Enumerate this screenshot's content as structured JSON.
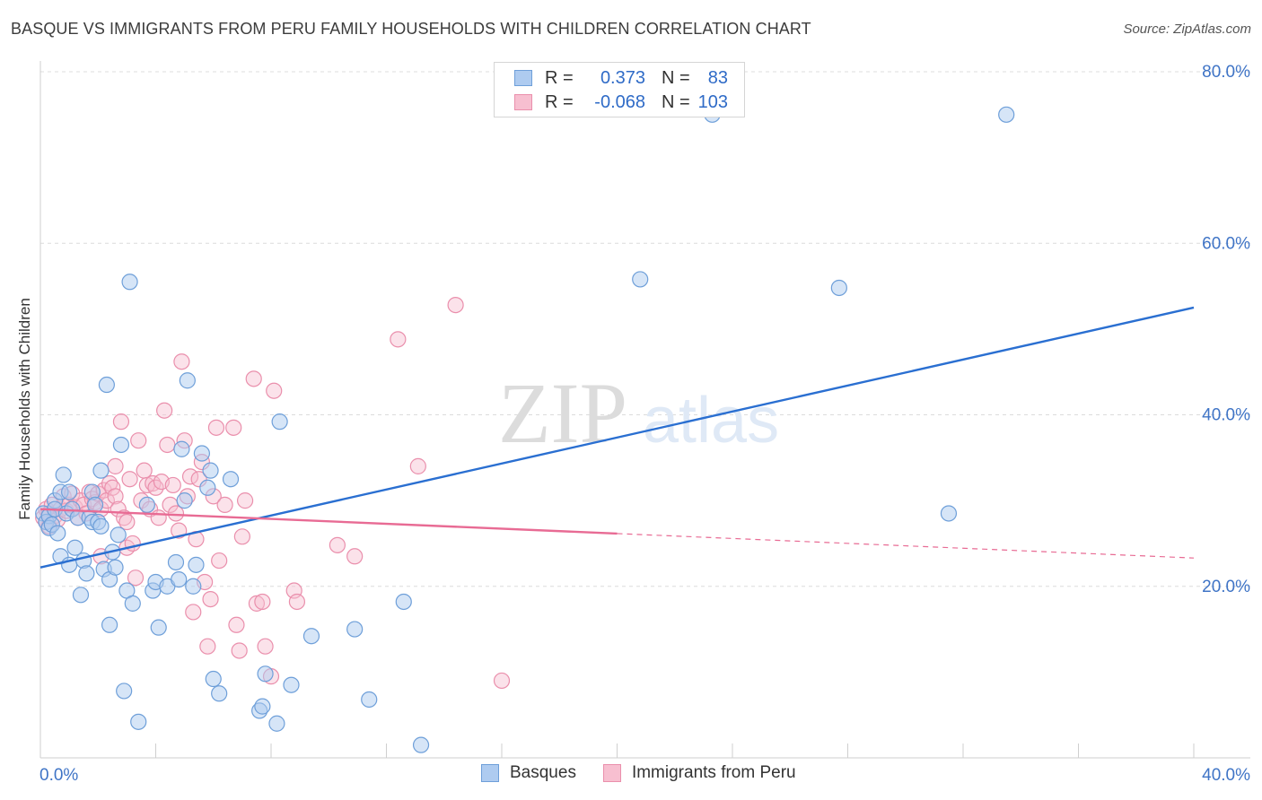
{
  "header": {
    "title": "BASQUE VS IMMIGRANTS FROM PERU FAMILY HOUSEHOLDS WITH CHILDREN CORRELATION CHART",
    "source": "Source: ZipAtlas.com"
  },
  "legend": {
    "r_label": "R =",
    "n_label": "N =",
    "rows": [
      {
        "r": "0.373",
        "n": "83"
      },
      {
        "r": "-0.068",
        "n": "103"
      }
    ]
  },
  "watermark": {
    "zip": "ZIP",
    "atlas": "atlas"
  },
  "colors": {
    "basque_fill": "#aecbf0",
    "basque_stroke": "#6e9fd9",
    "basque_line": "#2a6fd1",
    "peru_fill": "#f7bfd0",
    "peru_stroke": "#ea8fac",
    "peru_line": "#e86b94",
    "axis_tick_color": "#3f74c6"
  },
  "chart_data": {
    "type": "scatter",
    "title": "BASQUE VS IMMIGRANTS FROM PERU FAMILY HOUSEHOLDS WITH CHILDREN CORRELATION CHART",
    "xlabel": "",
    "ylabel": "Family Households with Children",
    "xlim": [
      0,
      40
    ],
    "ylim": [
      0,
      80
    ],
    "x_tick_labels": [
      "0.0%",
      "40.0%"
    ],
    "y_ticks": [
      20,
      40,
      60,
      80
    ],
    "y_tick_labels": [
      "20.0%",
      "40.0%",
      "60.0%",
      "80.0%"
    ],
    "grid": true,
    "series": [
      {
        "name": "Basques",
        "r": 0.373,
        "n": 83,
        "trend": {
          "x": [
            0,
            40
          ],
          "y": [
            22.2,
            52.5
          ],
          "dashed_from": null
        },
        "points": [
          [
            0.1,
            28.5
          ],
          [
            0.2,
            27.5
          ],
          [
            0.3,
            28.2
          ],
          [
            0.3,
            26.8
          ],
          [
            0.4,
            27.2
          ],
          [
            0.5,
            30.0
          ],
          [
            0.5,
            29.0
          ],
          [
            0.6,
            26.2
          ],
          [
            0.7,
            23.5
          ],
          [
            0.7,
            31.0
          ],
          [
            0.8,
            33.0
          ],
          [
            0.9,
            28.5
          ],
          [
            1.0,
            31.0
          ],
          [
            1.0,
            22.5
          ],
          [
            1.1,
            29.0
          ],
          [
            1.2,
            24.5
          ],
          [
            1.3,
            28.0
          ],
          [
            1.4,
            19.0
          ],
          [
            1.5,
            23.0
          ],
          [
            1.6,
            21.5
          ],
          [
            1.7,
            28.0
          ],
          [
            1.8,
            27.5
          ],
          [
            1.8,
            31.0
          ],
          [
            1.9,
            29.5
          ],
          [
            2.0,
            27.5
          ],
          [
            2.1,
            27.0
          ],
          [
            2.1,
            33.5
          ],
          [
            2.2,
            22.0
          ],
          [
            2.3,
            43.5
          ],
          [
            2.4,
            20.8
          ],
          [
            2.4,
            15.5
          ],
          [
            2.5,
            24.0
          ],
          [
            2.6,
            22.2
          ],
          [
            2.7,
            26.0
          ],
          [
            2.8,
            36.5
          ],
          [
            2.9,
            7.8
          ],
          [
            3.0,
            19.5
          ],
          [
            3.1,
            55.5
          ],
          [
            3.2,
            18.0
          ],
          [
            3.4,
            4.2
          ],
          [
            3.7,
            29.5
          ],
          [
            3.9,
            19.5
          ],
          [
            4.0,
            20.5
          ],
          [
            4.1,
            15.2
          ],
          [
            4.4,
            20.0
          ],
          [
            4.7,
            22.8
          ],
          [
            4.8,
            20.8
          ],
          [
            4.9,
            36.0
          ],
          [
            5.0,
            30.0
          ],
          [
            5.1,
            44.0
          ],
          [
            5.3,
            20.0
          ],
          [
            5.4,
            22.5
          ],
          [
            5.6,
            35.5
          ],
          [
            5.8,
            31.5
          ],
          [
            5.9,
            33.5
          ],
          [
            6.0,
            9.2
          ],
          [
            6.2,
            7.5
          ],
          [
            6.6,
            32.5
          ],
          [
            7.6,
            5.5
          ],
          [
            7.7,
            6.0
          ],
          [
            7.8,
            9.8
          ],
          [
            8.2,
            4.0
          ],
          [
            8.3,
            39.2
          ],
          [
            8.7,
            8.5
          ],
          [
            9.4,
            14.2
          ],
          [
            10.9,
            15.0
          ],
          [
            11.4,
            6.8
          ],
          [
            12.6,
            18.2
          ],
          [
            13.2,
            1.5
          ],
          [
            20.8,
            55.8
          ],
          [
            23.3,
            75.0
          ],
          [
            27.7,
            54.8
          ],
          [
            31.5,
            28.5
          ],
          [
            33.5,
            75.0
          ]
        ]
      },
      {
        "name": "Immigrants from Peru",
        "r": -0.068,
        "n": 103,
        "trend": {
          "x": [
            0,
            40
          ],
          "y": [
            29.0,
            23.3
          ],
          "dashed_from": 20.0
        },
        "points": [
          [
            0.1,
            28.0
          ],
          [
            0.2,
            27.5
          ],
          [
            0.2,
            29.0
          ],
          [
            0.3,
            28.5
          ],
          [
            0.3,
            27.0
          ],
          [
            0.4,
            29.5
          ],
          [
            0.5,
            28.2
          ],
          [
            0.6,
            27.8
          ],
          [
            0.7,
            29.0
          ],
          [
            0.8,
            30.5
          ],
          [
            0.9,
            28.8
          ],
          [
            1.0,
            29.5
          ],
          [
            1.1,
            30.8
          ],
          [
            1.2,
            29.2
          ],
          [
            1.3,
            28.0
          ],
          [
            1.4,
            30.0
          ],
          [
            1.5,
            29.5
          ],
          [
            1.6,
            28.5
          ],
          [
            1.7,
            31.0
          ],
          [
            1.8,
            30.2
          ],
          [
            1.9,
            29.8
          ],
          [
            2.0,
            30.8
          ],
          [
            2.1,
            29.0
          ],
          [
            2.1,
            23.5
          ],
          [
            2.2,
            31.2
          ],
          [
            2.3,
            30.0
          ],
          [
            2.4,
            32.0
          ],
          [
            2.5,
            31.5
          ],
          [
            2.6,
            30.5
          ],
          [
            2.6,
            34.0
          ],
          [
            2.7,
            29.0
          ],
          [
            2.8,
            39.2
          ],
          [
            2.9,
            28.0
          ],
          [
            3.0,
            27.5
          ],
          [
            3.0,
            24.5
          ],
          [
            3.1,
            32.5
          ],
          [
            3.2,
            25.0
          ],
          [
            3.3,
            21.0
          ],
          [
            3.4,
            37.0
          ],
          [
            3.5,
            30.0
          ],
          [
            3.6,
            33.5
          ],
          [
            3.7,
            31.8
          ],
          [
            3.8,
            29.0
          ],
          [
            3.9,
            32.0
          ],
          [
            4.0,
            31.5
          ],
          [
            4.1,
            28.0
          ],
          [
            4.2,
            32.2
          ],
          [
            4.3,
            40.5
          ],
          [
            4.4,
            36.5
          ],
          [
            4.5,
            29.5
          ],
          [
            4.6,
            31.8
          ],
          [
            4.7,
            28.5
          ],
          [
            4.8,
            26.5
          ],
          [
            4.9,
            46.2
          ],
          [
            5.0,
            37.0
          ],
          [
            5.1,
            30.5
          ],
          [
            5.2,
            32.8
          ],
          [
            5.3,
            17.0
          ],
          [
            5.4,
            25.5
          ],
          [
            5.5,
            32.5
          ],
          [
            5.6,
            34.5
          ],
          [
            5.7,
            20.5
          ],
          [
            5.8,
            13.0
          ],
          [
            5.9,
            18.5
          ],
          [
            6.0,
            30.5
          ],
          [
            6.1,
            38.5
          ],
          [
            6.2,
            23.0
          ],
          [
            6.4,
            29.5
          ],
          [
            6.7,
            38.5
          ],
          [
            6.8,
            15.5
          ],
          [
            6.9,
            12.5
          ],
          [
            7.0,
            25.8
          ],
          [
            7.1,
            30.0
          ],
          [
            7.4,
            44.2
          ],
          [
            7.5,
            18.0
          ],
          [
            7.7,
            18.2
          ],
          [
            7.8,
            13.0
          ],
          [
            8.0,
            9.5
          ],
          [
            8.1,
            42.8
          ],
          [
            8.8,
            19.5
          ],
          [
            8.9,
            18.2
          ],
          [
            10.3,
            24.8
          ],
          [
            10.9,
            23.5
          ],
          [
            12.4,
            48.8
          ],
          [
            13.1,
            34.0
          ],
          [
            14.4,
            52.8
          ],
          [
            16.0,
            9.0
          ]
        ]
      }
    ]
  },
  "bottom_legend": {
    "items": [
      "Basques",
      "Immigrants from Peru"
    ]
  }
}
